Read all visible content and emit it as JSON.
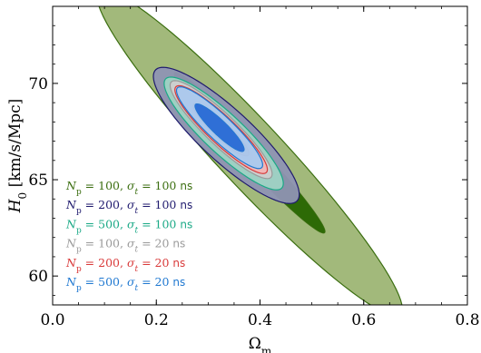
{
  "chart_data": {
    "type": "contour",
    "xlabel": "Ω_m",
    "ylabel": "H_0 [km/s/Mpc]",
    "xlim": [
      0.0,
      0.8
    ],
    "ylim": [
      58.5,
      74.0
    ],
    "x_ticks": [
      0.0,
      0.2,
      0.4,
      0.6,
      0.8
    ],
    "x_tick_labels": [
      "0.0",
      "0.2",
      "0.4",
      "0.6",
      "0.8"
    ],
    "y_ticks": [
      60,
      65,
      70
    ],
    "y_tick_labels": [
      "60",
      "65",
      "70"
    ],
    "legend_position": "lower-left",
    "grid": false,
    "series": [
      {
        "name": "N_p = 100, σ_t = 100 ns",
        "color": "#3b6e10",
        "fill_outer": "#9db574",
        "fill_inner": "#2d6a06",
        "center": [
          0.38,
          66.4
        ],
        "outer": {
          "semi_major": [
            0.292,
            -8.35
          ],
          "semi_minor": [
            0.0386,
            1.35
          ]
        },
        "inner": {
          "semi_major": [
            0.145,
            -4.15
          ],
          "semi_minor": [
            0.0133,
            0.465
          ]
        }
      },
      {
        "name": "N_p = 200, σ_t = 100 ns",
        "color": "#1f1a6e",
        "fill_outer": "#8f94b3",
        "fill_inner": "#4a5aa0",
        "center": [
          0.335,
          67.3
        ],
        "outer": {
          "semi_major": [
            0.138,
            -3.35
          ],
          "semi_minor": [
            0.0275,
            1.13
          ]
        },
        "inner": {
          "semi_major": [
            0.083,
            -2.0
          ],
          "semi_minor": [
            0.0165,
            0.68
          ]
        }
      },
      {
        "name": "N_p = 500, σ_t = 100 ns",
        "color": "#1aa986",
        "fill_outer": "#9fd3c4",
        "fill_inner": "#5fc2a8",
        "center": [
          0.33,
          67.4
        ],
        "outer": {
          "semi_major": [
            0.113,
            -2.8
          ],
          "semi_minor": [
            0.021,
            0.86
          ]
        },
        "inner": {
          "semi_major": [
            0.07,
            -1.75
          ],
          "semi_minor": [
            0.0125,
            0.51
          ]
        }
      },
      {
        "name": "N_p = 100, σ_t = 20 ns",
        "color": "#9a9a9a",
        "fill_outer": "#cfcfcf",
        "fill_inner": "#b3b3b3",
        "center": [
          0.325,
          67.6
        ],
        "outer": {
          "semi_major": [
            0.097,
            -2.45
          ],
          "semi_minor": [
            0.0165,
            0.68
          ]
        },
        "inner": {
          "semi_major": [
            0.06,
            -1.5
          ],
          "semi_minor": [
            0.0098,
            0.4
          ]
        }
      },
      {
        "name": "N_p = 200, σ_t = 20 ns",
        "color": "#d93a3a",
        "fill_outer": "#f2b5b5",
        "fill_inner": "#e58888",
        "center": [
          0.325,
          67.6
        ],
        "outer": {
          "semi_major": [
            0.088,
            -2.2
          ],
          "semi_minor": [
            0.0145,
            0.6
          ]
        },
        "inner": {
          "semi_major": [
            0.053,
            -1.32
          ],
          "semi_minor": [
            0.0087,
            0.36
          ]
        }
      },
      {
        "name": "N_p = 500, σ_t = 20 ns",
        "color": "#1f78d1",
        "fill_outer": "#a9c9ee",
        "fill_inner": "#2f6fd6",
        "center": [
          0.322,
          67.7
        ],
        "outer": {
          "semi_major": [
            0.082,
            -2.05
          ],
          "semi_minor": [
            0.0135,
            0.55
          ]
        },
        "inner": {
          "semi_major": [
            0.047,
            -1.2
          ],
          "semi_minor": [
            0.008,
            0.32
          ]
        }
      }
    ]
  }
}
